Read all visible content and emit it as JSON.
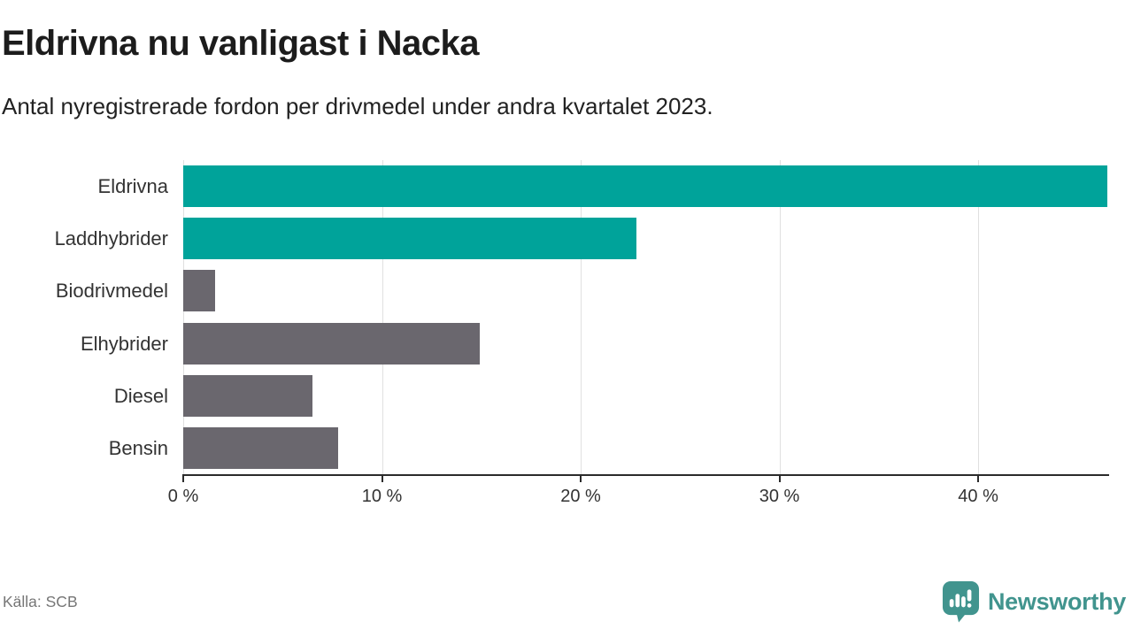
{
  "header": {
    "title": "Eldrivna nu vanligast i Nacka",
    "subtitle": "Antal nyregistrerade fordon per drivmedel under andra kvartalet 2023."
  },
  "chart_data": {
    "type": "bar",
    "orientation": "horizontal",
    "title": "Eldrivna nu vanligast i Nacka",
    "subtitle": "Antal nyregistrerade fordon per drivmedel under andra kvartalet 2023.",
    "categories": [
      "Eldrivna",
      "Laddhybrider",
      "Biodrivmedel",
      "Elhybrider",
      "Diesel",
      "Bensin"
    ],
    "values": [
      46.5,
      22.8,
      1.6,
      14.9,
      6.5,
      7.8
    ],
    "unit": "%",
    "bar_colors": [
      "#00a39a",
      "#00a39a",
      "#6a676e",
      "#6a676e",
      "#6a676e",
      "#6a676e"
    ],
    "xlabel": "",
    "ylabel": "",
    "xlim": [
      0,
      46.5
    ],
    "xticks": [
      {
        "value": 0,
        "label": "0 %"
      },
      {
        "value": 10,
        "label": "10 %"
      },
      {
        "value": 20,
        "label": "20 %"
      },
      {
        "value": 30,
        "label": "30 %"
      },
      {
        "value": 40,
        "label": "40 %"
      }
    ],
    "grid": "vertical",
    "legend": "none",
    "colors": {
      "highlight": "#00a39a",
      "default": "#6a676e",
      "gridline": "#e0e0e0",
      "axis": "#2b2b2b",
      "tick_text": "#333333"
    }
  },
  "footer": {
    "source": "Källa: SCB",
    "brand": "Newsworthy",
    "brand_color": "#41948e"
  }
}
